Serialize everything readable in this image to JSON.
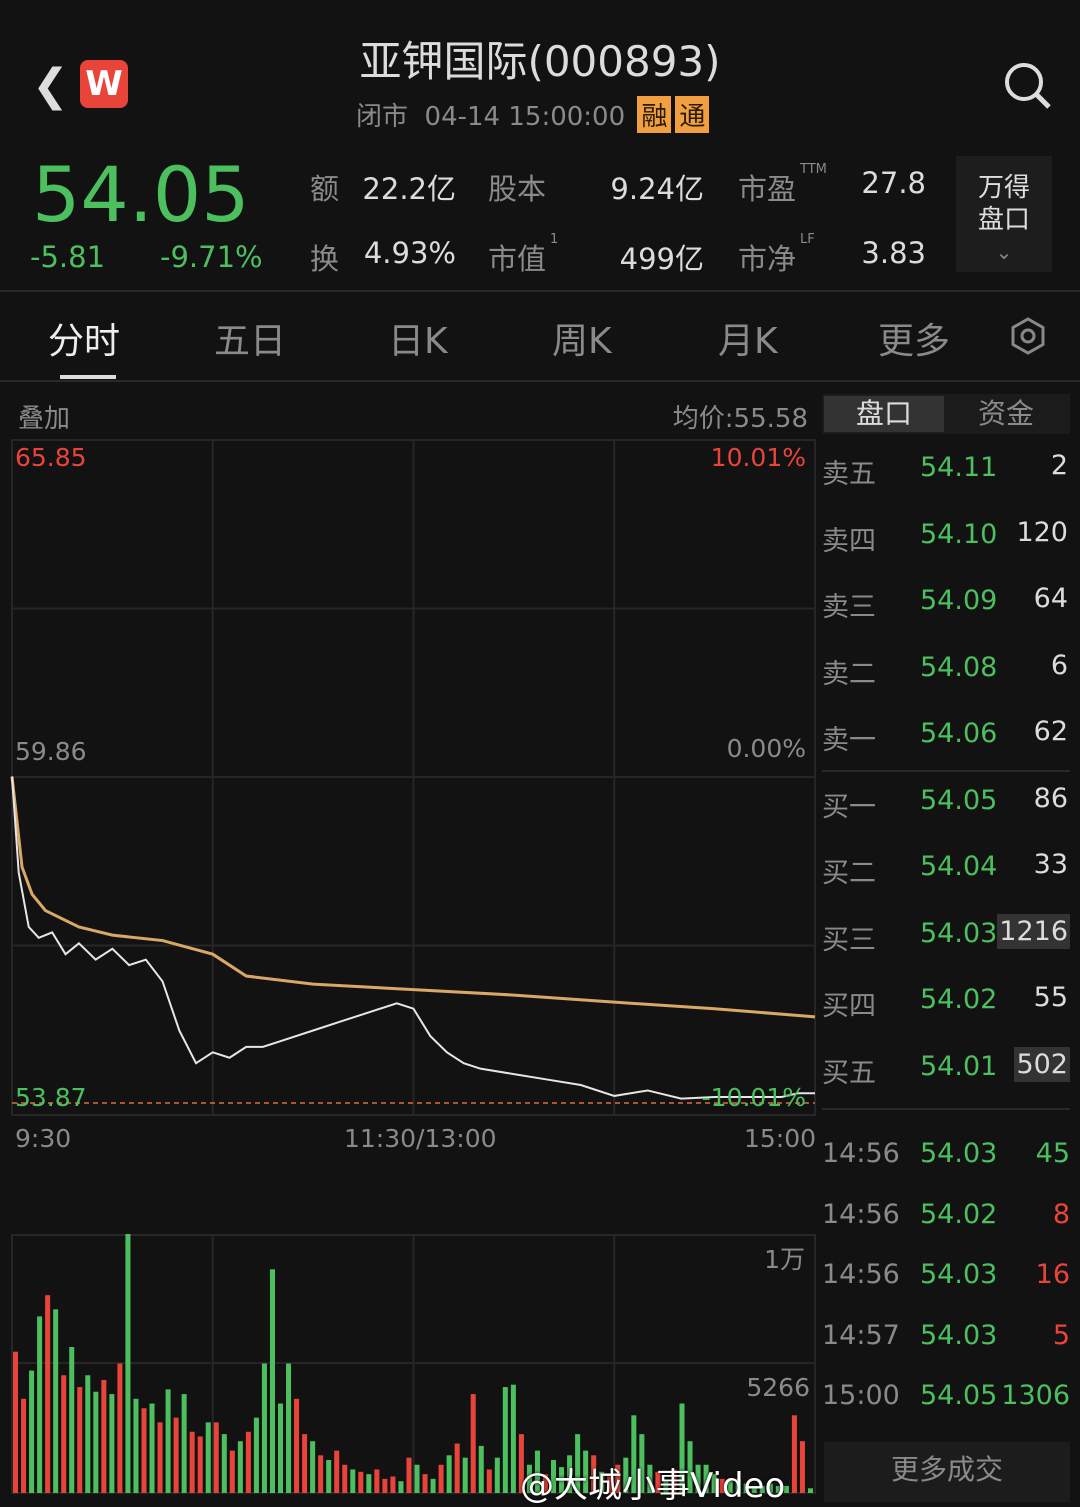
{
  "header": {
    "title": "亚钾国际(000893)",
    "status": "闭市",
    "time": "04-14 15:00:00",
    "badges": [
      "融",
      "通"
    ],
    "app_icon": "W"
  },
  "quote": {
    "price": "54.05",
    "change": "-5.81",
    "pct": "-9.71%",
    "stats": [
      [
        "额",
        "22.2亿"
      ],
      [
        "股本",
        "9.24亿"
      ],
      [
        "市盈",
        "27.8",
        "TTM"
      ],
      [
        "换",
        "4.93%"
      ],
      [
        "市值",
        "499亿",
        "1"
      ],
      [
        "市净",
        "3.83",
        "LF"
      ]
    ],
    "wind_button": [
      "万得",
      "盘口"
    ]
  },
  "tabs": [
    "分时",
    "五日",
    "日K",
    "周K",
    "月K",
    "更多"
  ],
  "chart": {
    "overlay": "叠加",
    "avg_label": "均价:55.58",
    "top_price": "65.85",
    "top_pct": "10.01%",
    "mid_price": "59.86",
    "mid_pct": "0.00%",
    "bottom_price": "53.87",
    "bottom_pct": "-10.01%",
    "times": [
      "9:30",
      "11:30/13:00",
      "15:00"
    ],
    "vol_top": "1万",
    "vol_mid": "5266"
  },
  "chart_data": {
    "type": "line",
    "prev_close": 59.86,
    "ylim": [
      53.87,
      65.85
    ],
    "xlim_minutes": [
      0,
      240
    ],
    "price_minutes": [
      0,
      2,
      5,
      8,
      12,
      16,
      20,
      25,
      30,
      35,
      40,
      45,
      50,
      55,
      60,
      65,
      70,
      75,
      80,
      90,
      100,
      110,
      115,
      120,
      125,
      130,
      135,
      140,
      150,
      160,
      170,
      180,
      190,
      200,
      210,
      220,
      230,
      235,
      240
    ],
    "price": [
      59.86,
      58.1,
      57.1,
      56.9,
      57.0,
      56.6,
      56.8,
      56.5,
      56.7,
      56.4,
      56.5,
      56.1,
      55.2,
      54.6,
      54.8,
      54.7,
      54.9,
      54.9,
      55.0,
      55.2,
      55.4,
      55.6,
      55.7,
      55.6,
      55.1,
      54.8,
      54.6,
      54.5,
      54.4,
      54.3,
      54.2,
      54.0,
      54.1,
      53.95,
      53.98,
      53.98,
      53.98,
      54.05,
      54.05
    ],
    "avg_minutes": [
      0,
      3,
      6,
      10,
      20,
      30,
      45,
      60,
      70,
      90,
      120,
      150,
      180,
      210,
      240
    ],
    "avg": [
      59.86,
      58.2,
      57.7,
      57.4,
      57.1,
      56.95,
      56.85,
      56.6,
      56.2,
      56.05,
      55.95,
      55.85,
      55.72,
      55.6,
      55.45
    ],
    "volume": [
      6000,
      4000,
      -5200,
      -7500,
      8400,
      -7800,
      5000,
      -6200,
      4500,
      -5000,
      -4300,
      4800,
      -4200,
      5500,
      -11000,
      -4000,
      3600,
      -3800,
      3000,
      -4400,
      3200,
      -4200,
      2600,
      2400,
      -3000,
      3000,
      -2500,
      1800,
      -2200,
      2600,
      -3200,
      -5500,
      -9500,
      -3800,
      -5500,
      4000,
      2500,
      -2200,
      1600,
      -1400,
      1800,
      1200,
      -1000,
      900,
      -800,
      1000,
      600,
      700,
      -500,
      1500,
      -1200,
      800,
      -600,
      1200,
      -1600,
      2100,
      -1500,
      4200,
      -2000,
      1000,
      -1500,
      -4500,
      -4600,
      2500,
      -1200,
      -1800,
      800,
      -1400,
      -1100,
      -1600,
      -2500,
      -1800,
      1600,
      -900,
      700,
      1200,
      -1500,
      -3300,
      -2500,
      -1200,
      900,
      -500,
      1000,
      -3800,
      -2200,
      -1200,
      -1200,
      -800,
      600,
      -500,
      -600,
      -400,
      -300,
      -300,
      -400,
      -300,
      -300,
      3300,
      2200,
      -200
    ]
  },
  "order_book": {
    "sell": [
      [
        "卖五",
        "54.11",
        "2"
      ],
      [
        "卖四",
        "54.10",
        "120"
      ],
      [
        "卖三",
        "54.09",
        "64"
      ],
      [
        "卖二",
        "54.08",
        "6"
      ],
      [
        "卖一",
        "54.06",
        "62"
      ]
    ],
    "buy": [
      [
        "买一",
        "54.05",
        "86"
      ],
      [
        "买二",
        "54.04",
        "33"
      ],
      [
        "买三",
        "54.03",
        "1216"
      ],
      [
        "买四",
        "54.02",
        "55"
      ],
      [
        "买五",
        "54.01",
        "502"
      ]
    ],
    "tabs": [
      "盘口",
      "资金"
    ]
  },
  "trades": [
    [
      "14:56",
      "54.03",
      "45",
      "g"
    ],
    [
      "14:56",
      "54.02",
      "8",
      "r"
    ],
    [
      "14:56",
      "54.03",
      "16",
      "r"
    ],
    [
      "14:57",
      "54.03",
      "5",
      "r"
    ],
    [
      "15:00",
      "54.05",
      "1306",
      "g"
    ]
  ],
  "more_trades": "更多成交",
  "watermark": "@大城小事Video",
  "colors": {
    "up": "#e8443a",
    "down": "#4cbf5e",
    "avg": "#d9a866",
    "price": "#e6e6e6",
    "bg": "#121212"
  }
}
